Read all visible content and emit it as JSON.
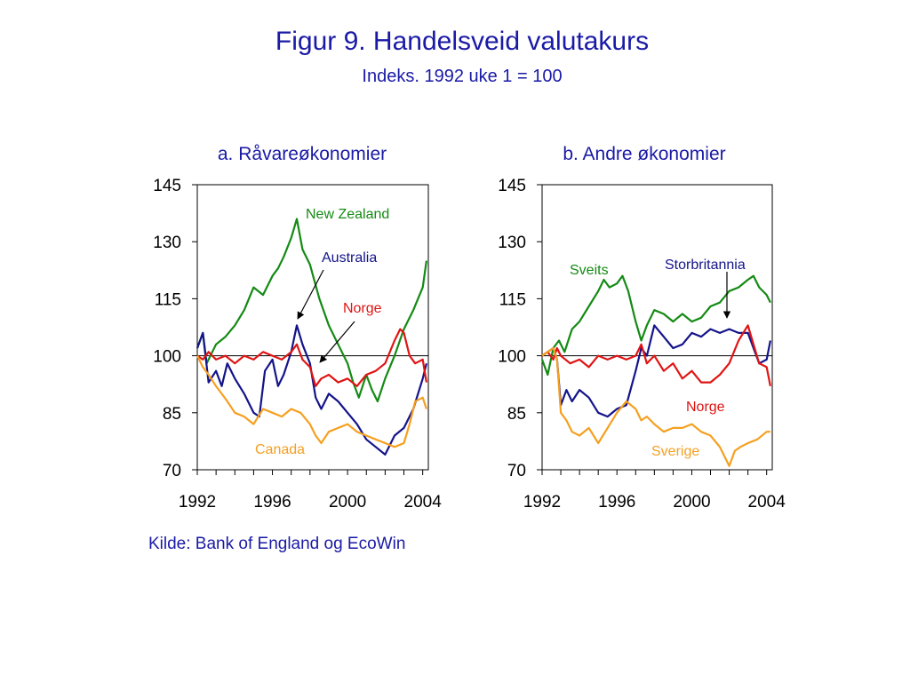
{
  "header": {
    "title": "Figur 9. Handelsveid valutakurs",
    "subtitle": "Indeks. 1992 uke 1 = 100"
  },
  "footer": {
    "source": "Kilde: Bank of England og EcoWin"
  },
  "chart_data": [
    {
      "type": "line",
      "title": "a. Råvareøkonomier",
      "ylim": [
        70,
        145
      ],
      "yticks": [
        "70",
        "85",
        "100",
        "115",
        "130",
        "145"
      ],
      "xlim": [
        1992,
        2004.3
      ],
      "xticks": [
        "1992",
        "1996",
        "2000",
        "2004"
      ],
      "reference_line": 100,
      "grid": false,
      "series": [
        {
          "name": "New Zealand",
          "color": "#148a14",
          "x": [
            1992.0,
            1992.3,
            1992.5,
            1992.8,
            1993.0,
            1993.5,
            1994.0,
            1994.5,
            1995.0,
            1995.5,
            1996.0,
            1996.3,
            1996.6,
            1997.0,
            1997.3,
            1997.6,
            1998.0,
            1998.5,
            1999.0,
            1999.5,
            2000.0,
            2000.3,
            2000.6,
            2001.0,
            2001.3,
            2001.6,
            2002.0,
            2002.5,
            2003.0,
            2003.5,
            2004.0,
            2004.2
          ],
          "values": [
            102,
            106,
            98,
            101,
            103,
            105,
            108,
            112,
            118,
            116,
            121,
            123,
            126,
            131,
            136,
            128,
            124,
            115,
            108,
            103,
            98,
            93,
            89,
            95,
            91,
            88,
            94,
            100,
            107,
            112,
            118,
            125
          ]
        },
        {
          "name": "Australia",
          "color": "#14148a",
          "x": [
            1992.0,
            1992.3,
            1992.6,
            1993.0,
            1993.3,
            1993.6,
            1994.0,
            1994.5,
            1995.0,
            1995.3,
            1995.6,
            1996.0,
            1996.3,
            1996.6,
            1997.0,
            1997.3,
            1997.6,
            1998.0,
            1998.3,
            1998.6,
            1999.0,
            1999.5,
            2000.0,
            2000.5,
            2001.0,
            2001.5,
            2002.0,
            2002.5,
            2003.0,
            2003.5,
            2004.0,
            2004.2
          ],
          "values": [
            102,
            106,
            93,
            96,
            92,
            98,
            94,
            90,
            85,
            84,
            96,
            99,
            92,
            95,
            101,
            108,
            103,
            98,
            89,
            86,
            90,
            88,
            85,
            82,
            78,
            76,
            74,
            79,
            81,
            86,
            94,
            98
          ]
        },
        {
          "name": "Norge",
          "color": "#e01414",
          "x": [
            1992.0,
            1992.3,
            1992.6,
            1993.0,
            1993.5,
            1994.0,
            1994.5,
            1995.0,
            1995.5,
            1996.0,
            1996.5,
            1997.0,
            1997.3,
            1997.6,
            1998.0,
            1998.3,
            1998.6,
            1999.0,
            1999.5,
            2000.0,
            2000.5,
            2001.0,
            2001.5,
            2002.0,
            2002.5,
            2002.8,
            2003.0,
            2003.3,
            2003.6,
            2004.0,
            2004.2
          ],
          "values": [
            100,
            99,
            101,
            99,
            100,
            98,
            100,
            99,
            101,
            100,
            99,
            101,
            103,
            99,
            97,
            92,
            94,
            95,
            93,
            94,
            92,
            95,
            96,
            98,
            104,
            107,
            106,
            100,
            98,
            99,
            93
          ]
        },
        {
          "name": "Canada",
          "color": "#f5a020",
          "x": [
            1992.0,
            1992.3,
            1992.6,
            1993.0,
            1993.3,
            1993.6,
            1994.0,
            1994.5,
            1995.0,
            1995.5,
            1996.0,
            1996.5,
            1997.0,
            1997.5,
            1998.0,
            1998.3,
            1998.6,
            1999.0,
            1999.5,
            2000.0,
            2000.5,
            2001.0,
            2001.5,
            2002.0,
            2002.5,
            2003.0,
            2003.3,
            2003.6,
            2004.0,
            2004.2
          ],
          "values": [
            100,
            97,
            95,
            92,
            90,
            88,
            85,
            84,
            82,
            86,
            85,
            84,
            86,
            85,
            82,
            79,
            77,
            80,
            81,
            82,
            80,
            79,
            78,
            77,
            76,
            77,
            82,
            88,
            89,
            86
          ]
        }
      ],
      "annotations": [
        "New Zealand",
        "Australia",
        "Norge",
        "Canada"
      ]
    },
    {
      "type": "line",
      "title": "b. Andre økonomier",
      "ylim": [
        70,
        145
      ],
      "yticks": [
        "70",
        "85",
        "100",
        "115",
        "130",
        "145"
      ],
      "xlim": [
        1992,
        2004.3
      ],
      "xticks": [
        "1992",
        "1996",
        "2000",
        "2004"
      ],
      "reference_line": 100,
      "grid": false,
      "series": [
        {
          "name": "Sveits",
          "color": "#148a14",
          "x": [
            1992.0,
            1992.3,
            1992.6,
            1992.9,
            1993.2,
            1993.6,
            1994.0,
            1994.5,
            1995.0,
            1995.3,
            1995.6,
            1996.0,
            1996.3,
            1996.6,
            1997.0,
            1997.3,
            1997.6,
            1998.0,
            1998.5,
            1999.0,
            1999.5,
            2000.0,
            2000.5,
            2001.0,
            2001.5,
            2002.0,
            2002.5,
            2003.0,
            2003.3,
            2003.6,
            2004.0,
            2004.2
          ],
          "values": [
            99,
            95,
            102,
            104,
            101,
            107,
            109,
            113,
            117,
            120,
            118,
            119,
            121,
            117,
            109,
            104,
            108,
            112,
            111,
            109,
            111,
            109,
            110,
            113,
            114,
            117,
            118,
            120,
            121,
            118,
            116,
            114
          ]
        },
        {
          "name": "Storbritannia",
          "color": "#14148a",
          "x": [
            1992.0,
            1992.3,
            1992.6,
            1992.8,
            1993.0,
            1993.3,
            1993.6,
            1994.0,
            1994.5,
            1995.0,
            1995.5,
            1996.0,
            1996.5,
            1997.0,
            1997.3,
            1997.6,
            1998.0,
            1998.5,
            1999.0,
            1999.5,
            2000.0,
            2000.5,
            2001.0,
            2001.5,
            2002.0,
            2002.5,
            2003.0,
            2003.3,
            2003.6,
            2004.0,
            2004.2
          ],
          "values": [
            100,
            101,
            102,
            99,
            87,
            91,
            88,
            91,
            89,
            85,
            84,
            86,
            87,
            96,
            102,
            100,
            108,
            105,
            102,
            103,
            106,
            105,
            107,
            106,
            107,
            106,
            106,
            102,
            98,
            99,
            104
          ]
        },
        {
          "name": "Norge",
          "color": "#e01414",
          "x": [
            1992.0,
            1992.3,
            1992.6,
            1992.8,
            1993.0,
            1993.5,
            1994.0,
            1994.5,
            1995.0,
            1995.5,
            1996.0,
            1996.5,
            1997.0,
            1997.3,
            1997.6,
            1998.0,
            1998.5,
            1999.0,
            1999.5,
            2000.0,
            2000.5,
            2001.0,
            2001.5,
            2002.0,
            2002.5,
            2003.0,
            2003.3,
            2003.6,
            2004.0,
            2004.2
          ],
          "values": [
            100,
            101,
            99,
            102,
            100,
            98,
            99,
            97,
            100,
            99,
            100,
            99,
            100,
            103,
            98,
            100,
            96,
            98,
            94,
            96,
            93,
            93,
            95,
            98,
            104,
            108,
            103,
            98,
            97,
            92
          ]
        },
        {
          "name": "Sverige",
          "color": "#f5a020",
          "x": [
            1992.0,
            1992.3,
            1992.6,
            1992.8,
            1993.0,
            1993.3,
            1993.6,
            1994.0,
            1994.5,
            1995.0,
            1995.5,
            1996.0,
            1996.5,
            1997.0,
            1997.3,
            1997.6,
            1998.0,
            1998.5,
            1999.0,
            1999.5,
            2000.0,
            2000.5,
            2001.0,
            2001.5,
            2002.0,
            2002.3,
            2002.6,
            2003.0,
            2003.5,
            2004.0,
            2004.2
          ],
          "values": [
            100,
            101,
            102,
            99,
            85,
            83,
            80,
            79,
            81,
            77,
            81,
            85,
            88,
            86,
            83,
            84,
            82,
            80,
            81,
            81,
            82,
            80,
            79,
            76,
            71,
            75,
            76,
            77,
            78,
            80,
            80
          ]
        }
      ],
      "annotations": [
        "Sveits",
        "Storbritannia",
        "Norge",
        "Sverige"
      ]
    }
  ]
}
